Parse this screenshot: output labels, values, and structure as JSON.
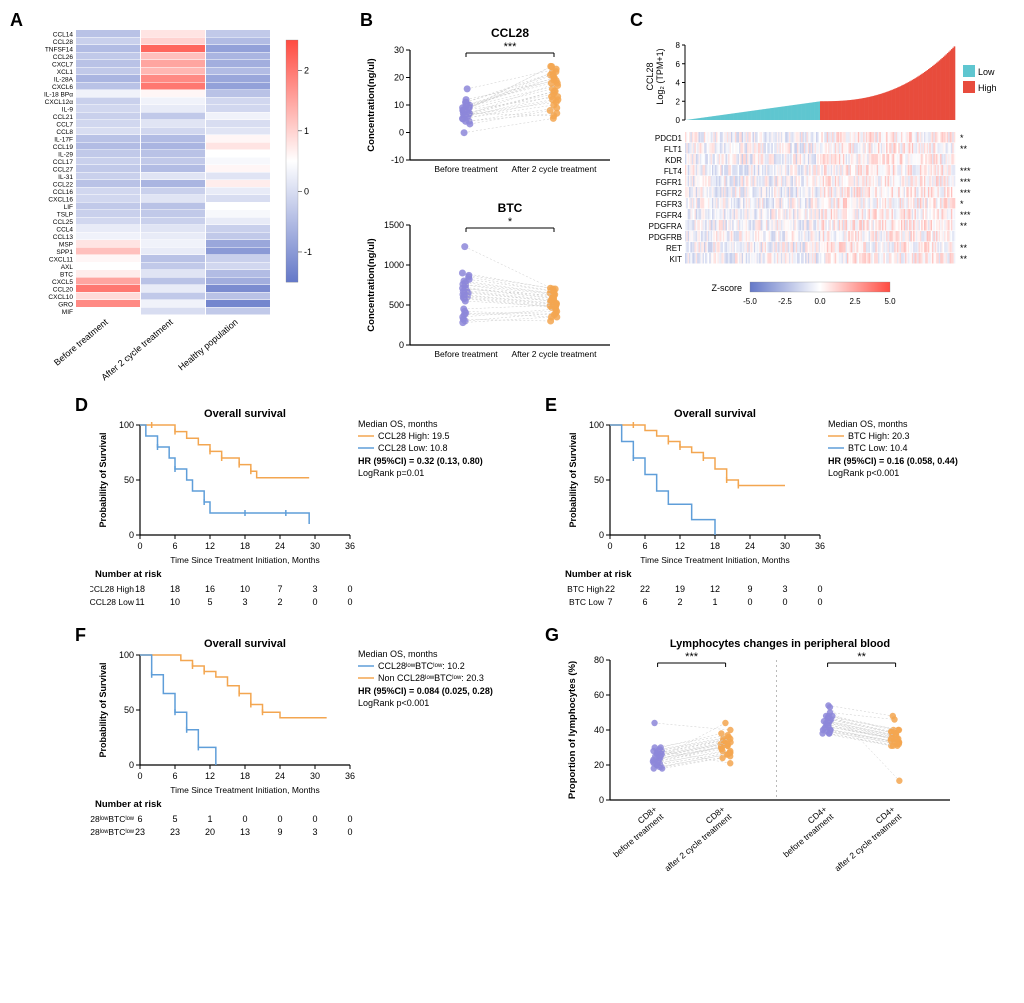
{
  "panelA": {
    "label": "A",
    "row_labels": [
      "CCL14",
      "CCL28",
      "TNFSF14",
      "CCL26",
      "CXCL7",
      "XCL1",
      "IL-28A",
      "CXCL6",
      "IL-18 BPα",
      "CXCL12α",
      "IL-9",
      "CCL21",
      "CCL7",
      "CCL8",
      "IL-17F",
      "CCL19",
      "IL-29",
      "CCL17",
      "CCL27",
      "IL-31",
      "CCL22",
      "CCL16",
      "CXCL16",
      "LIF",
      "TSLP",
      "CCL25",
      "CCL4",
      "CCL13",
      "MSP",
      "SPP1",
      "CXCL11",
      "AXL",
      "BTC",
      "CXCL5",
      "CCL20",
      "CXCL10",
      "GRO",
      "MIF"
    ],
    "col_labels": [
      "Before treatment",
      "After 2 cycle treatment",
      "Healthy population"
    ],
    "scale_ticks": [
      "2",
      "1",
      "0",
      "-1"
    ],
    "cells": [
      [
        -0.4,
        0.8,
        -0.3
      ],
      [
        -0.2,
        1.0,
        -0.5
      ],
      [
        -0.5,
        2.2,
        -0.9
      ],
      [
        -0.3,
        1.2,
        -0.6
      ],
      [
        -0.4,
        1.5,
        -0.7
      ],
      [
        -0.3,
        1.3,
        -0.5
      ],
      [
        -0.6,
        1.8,
        -0.8
      ],
      [
        -0.4,
        2.0,
        -0.9
      ],
      [
        0.3,
        0.6,
        -0.4
      ],
      [
        -0.2,
        0.3,
        -0.1
      ],
      [
        -0.1,
        0.2,
        -0.1
      ],
      [
        -0.2,
        -0.3,
        0.3
      ],
      [
        -0.1,
        0.1,
        0.0
      ],
      [
        0.0,
        -0.1,
        0.1
      ],
      [
        -0.4,
        -0.5,
        0.6
      ],
      [
        -0.5,
        -0.6,
        0.8
      ],
      [
        -0.3,
        -0.4,
        0.5
      ],
      [
        -0.2,
        -0.3,
        0.4
      ],
      [
        -0.3,
        -0.5,
        0.6
      ],
      [
        -0.2,
        0.1,
        0.1
      ],
      [
        -0.4,
        -0.6,
        0.7
      ],
      [
        -0.1,
        -0.2,
        0.2
      ],
      [
        -0.1,
        0.1,
        0.0
      ],
      [
        -0.3,
        -0.4,
        0.5
      ],
      [
        -0.2,
        -0.3,
        0.4
      ],
      [
        -0.1,
        -0.2,
        0.2
      ],
      [
        0.2,
        0.1,
        -0.2
      ],
      [
        0.3,
        0.2,
        -0.3
      ],
      [
        0.8,
        0.3,
        -0.8
      ],
      [
        1.2,
        0.2,
        -1.0
      ],
      [
        0.6,
        -0.4,
        -0.2
      ],
      [
        0.5,
        -0.3,
        -0.1
      ],
      [
        0.7,
        0.1,
        -0.5
      ],
      [
        1.5,
        -0.4,
        -0.7
      ],
      [
        2.0,
        0.2,
        -1.2
      ],
      [
        0.9,
        -0.3,
        -0.4
      ],
      [
        1.8,
        0.3,
        -1.3
      ],
      [
        0.5,
        0.0,
        -0.3
      ]
    ],
    "scale_min": -1.5,
    "scale_max": 2.5
  },
  "panelB": {
    "label": "B",
    "chart1": {
      "title": "CCL28",
      "y_label": "Concentration(ng/ul)",
      "x_labels": [
        "Before treatment",
        "After 2 cycle treatment"
      ],
      "y_ticks": [
        "-10",
        "0",
        "10",
        "20",
        "30"
      ],
      "y_min": -10,
      "y_max": 30,
      "sig": "***",
      "color_before": "#8d87d9",
      "color_after": "#f3a650",
      "pairs": [
        [
          8,
          22
        ],
        [
          10,
          20
        ],
        [
          7,
          18
        ],
        [
          9,
          24
        ],
        [
          6,
          15
        ],
        [
          12,
          19
        ],
        [
          5,
          12
        ],
        [
          8,
          16
        ],
        [
          11,
          21
        ],
        [
          7,
          14
        ],
        [
          16,
          23
        ],
        [
          9,
          17
        ],
        [
          0,
          5
        ],
        [
          3,
          8
        ],
        [
          6,
          11
        ],
        [
          4,
          9
        ],
        [
          8,
          13
        ],
        [
          10,
          19
        ],
        [
          7,
          6
        ],
        [
          5,
          10
        ],
        [
          9,
          20
        ],
        [
          11,
          22
        ],
        [
          6,
          13
        ],
        [
          8,
          24
        ],
        [
          4,
          7
        ],
        [
          7,
          15
        ],
        [
          10,
          18
        ],
        [
          9,
          21
        ],
        [
          6,
          12
        ]
      ]
    },
    "chart2": {
      "title": "BTC",
      "y_label": "Concentration(ng/ul)",
      "x_labels": [
        "Before treatment",
        "After 2 cycle treatment"
      ],
      "y_ticks": [
        "0",
        "500",
        "1000",
        "1500"
      ],
      "y_min": 0,
      "y_max": 1500,
      "sig": "*",
      "color_before": "#8d87d9",
      "color_after": "#f3a650",
      "pairs": [
        [
          800,
          650
        ],
        [
          750,
          600
        ],
        [
          900,
          700
        ],
        [
          650,
          550
        ],
        [
          1230,
          700
        ],
        [
          700,
          620
        ],
        [
          600,
          500
        ],
        [
          550,
          480
        ],
        [
          850,
          680
        ],
        [
          780,
          640
        ],
        [
          720,
          590
        ],
        [
          680,
          560
        ],
        [
          630,
          520
        ],
        [
          590,
          490
        ],
        [
          870,
          710
        ],
        [
          820,
          670
        ],
        [
          760,
          630
        ],
        [
          710,
          580
        ],
        [
          670,
          550
        ],
        [
          620,
          510
        ],
        [
          580,
          470
        ],
        [
          300,
          400
        ],
        [
          350,
          450
        ],
        [
          400,
          350
        ],
        [
          450,
          500
        ],
        [
          380,
          420
        ],
        [
          420,
          380
        ],
        [
          320,
          300
        ],
        [
          280,
          350
        ]
      ]
    }
  },
  "panelC": {
    "label": "C",
    "y_label": "CCL28\nLog₂ (TPM+1)",
    "y_ticks": [
      "0",
      "2",
      "4",
      "6",
      "8"
    ],
    "legend": {
      "low_label": "Low",
      "high_label": "High",
      "low_color": "#5fc6d0",
      "high_color": "#e84c3d"
    },
    "gene_rows": [
      "PDCD1",
      "FLT1",
      "KDR",
      "FLT4",
      "FGFR1",
      "FGFR2",
      "FGFR3",
      "FGFR4",
      "PDGFRA",
      "PDGFRB",
      "RET",
      "KIT"
    ],
    "sig_marks": [
      "*",
      "**",
      "",
      "***",
      "***",
      "***",
      "*",
      "***",
      "**",
      "",
      "**",
      "**"
    ],
    "zscore_label": "Z-score",
    "zscore_ticks": [
      "-5.0",
      "-2.5",
      "0.0",
      "2.5",
      "5.0"
    ]
  },
  "survival_common": {
    "x_label": "Time Since Treatment Initiation, Months",
    "y_label": "Probability of Survival",
    "x_ticks": [
      "0",
      "6",
      "12",
      "18",
      "24",
      "30",
      "36"
    ],
    "y_ticks": [
      "0",
      "50",
      "100"
    ],
    "risk_label": "Number at risk",
    "title": "Overall survival",
    "color_high": "#f3a650",
    "color_low": "#5f9ed9"
  },
  "panelD": {
    "label": "D",
    "legend_title": "Median OS, months",
    "high_label": "CCL28 High: 19.5",
    "low_label": "CCL28 Low: 10.8",
    "hr": "HR (95%CI) = 0.32 (0.13, 0.80)",
    "p": "LogRank p=0.01",
    "risk_high_label": "CCL28 High",
    "risk_low_label": "CCL28 Low",
    "risk_high": [
      "18",
      "18",
      "16",
      "10",
      "7",
      "3",
      "0"
    ],
    "risk_low": [
      "11",
      "10",
      "5",
      "3",
      "2",
      "0",
      "0"
    ],
    "curve_high": [
      [
        0,
        100
      ],
      [
        2,
        100
      ],
      [
        3,
        100
      ],
      [
        6,
        94
      ],
      [
        8,
        88
      ],
      [
        10,
        82
      ],
      [
        12,
        76
      ],
      [
        14,
        70
      ],
      [
        17,
        64
      ],
      [
        19,
        58
      ],
      [
        20,
        52
      ],
      [
        22,
        52
      ],
      [
        26,
        52
      ],
      [
        29,
        52
      ]
    ],
    "curve_low": [
      [
        0,
        100
      ],
      [
        1,
        90
      ],
      [
        3,
        80
      ],
      [
        5,
        70
      ],
      [
        6,
        60
      ],
      [
        8,
        50
      ],
      [
        9,
        40
      ],
      [
        11,
        30
      ],
      [
        12,
        20
      ],
      [
        18,
        20
      ],
      [
        25,
        20
      ],
      [
        29,
        10
      ]
    ]
  },
  "panelE": {
    "label": "E",
    "legend_title": "Median OS, months",
    "high_label": "BTC High: 20.3",
    "low_label": "BTC Low: 10.4",
    "hr": "HR (95%CI) = 0.16 (0.058, 0.44)",
    "p": "LogRank p<0.001",
    "risk_high_label": "BTC High",
    "risk_low_label": "BTC Low",
    "risk_high": [
      "22",
      "22",
      "19",
      "12",
      "9",
      "3",
      "0"
    ],
    "risk_low": [
      "7",
      "6",
      "2",
      "1",
      "0",
      "0",
      "0"
    ],
    "curve_high": [
      [
        0,
        100
      ],
      [
        4,
        100
      ],
      [
        6,
        95
      ],
      [
        8,
        90
      ],
      [
        10,
        85
      ],
      [
        12,
        80
      ],
      [
        14,
        75
      ],
      [
        16,
        70
      ],
      [
        18,
        60
      ],
      [
        20,
        50
      ],
      [
        22,
        45
      ],
      [
        26,
        45
      ],
      [
        30,
        45
      ]
    ],
    "curve_low": [
      [
        0,
        100
      ],
      [
        2,
        85
      ],
      [
        4,
        70
      ],
      [
        6,
        55
      ],
      [
        8,
        40
      ],
      [
        10,
        28
      ],
      [
        12,
        28
      ],
      [
        14,
        14
      ],
      [
        17,
        14
      ],
      [
        18,
        0
      ]
    ]
  },
  "panelF": {
    "label": "F",
    "legend_title": "Median OS, months",
    "low_label": "CCL28ˡᵒʷBTCˡᵒʷ: 10.2",
    "high_label": "Non CCL28ˡᵒʷBTCˡᵒʷ: 20.3",
    "hr": "HR (95%CI) = 0.084 (0.025, 0.28)",
    "p": "LogRank p<0.001",
    "risk_high_label": "Non CCL28ˡᵒʷBTCˡᵒʷ",
    "risk_low_label": "CCL28ˡᵒʷBTCˡᵒʷ",
    "risk_high": [
      "23",
      "23",
      "20",
      "13",
      "9",
      "3",
      "0"
    ],
    "risk_low": [
      "6",
      "5",
      "1",
      "0",
      "0",
      "0",
      "0"
    ],
    "curve_high": [
      [
        0,
        100
      ],
      [
        5,
        100
      ],
      [
        7,
        95
      ],
      [
        9,
        90
      ],
      [
        11,
        85
      ],
      [
        13,
        80
      ],
      [
        15,
        72
      ],
      [
        17,
        65
      ],
      [
        19,
        55
      ],
      [
        21,
        48
      ],
      [
        24,
        43
      ],
      [
        28,
        43
      ],
      [
        32,
        43
      ]
    ],
    "curve_low": [
      [
        0,
        100
      ],
      [
        2,
        82
      ],
      [
        4,
        65
      ],
      [
        6,
        48
      ],
      [
        8,
        32
      ],
      [
        10,
        16
      ],
      [
        12,
        16
      ],
      [
        13,
        0
      ]
    ]
  },
  "panelG": {
    "label": "G",
    "title": "Lymphocytes changes in peripheral blood",
    "y_label": "Proportion of lymphocytes (%)",
    "y_ticks": [
      "0",
      "20",
      "40",
      "60",
      "80"
    ],
    "y_min": 0,
    "y_max": 80,
    "x_labels": [
      "CD8+\nbefore treatment",
      "CD8+\nafter 2 cycle treatment",
      "CD4+\nbefore treatment",
      "CD4+\nafter 2 cycle treatment"
    ],
    "sig1": "***",
    "sig2": "**",
    "color_before": "#8d87d9",
    "color_after": "#f3a650",
    "cd8_pairs": [
      [
        25,
        32
      ],
      [
        22,
        30
      ],
      [
        28,
        35
      ],
      [
        20,
        27
      ],
      [
        30,
        38
      ],
      [
        18,
        25
      ],
      [
        26,
        33
      ],
      [
        24,
        31
      ],
      [
        44,
        40
      ],
      [
        21,
        28
      ],
      [
        27,
        34
      ],
      [
        23,
        30
      ],
      [
        19,
        26
      ],
      [
        25,
        32
      ],
      [
        22,
        44
      ],
      [
        28,
        21
      ],
      [
        20,
        27
      ],
      [
        30,
        37
      ],
      [
        18,
        24
      ],
      [
        26,
        33
      ],
      [
        24,
        31
      ],
      [
        29,
        36
      ],
      [
        21,
        28
      ],
      [
        27,
        34
      ],
      [
        23,
        30
      ],
      [
        19,
        26
      ],
      [
        25,
        32
      ],
      [
        22,
        29
      ],
      [
        28,
        35
      ]
    ],
    "cd4_pairs": [
      [
        42,
        35
      ],
      [
        45,
        37
      ],
      [
        40,
        33
      ],
      [
        48,
        40
      ],
      [
        38,
        31
      ],
      [
        44,
        36
      ],
      [
        54,
        48
      ],
      [
        46,
        38
      ],
      [
        39,
        32
      ],
      [
        43,
        35
      ],
      [
        47,
        39
      ],
      [
        40,
        33
      ],
      [
        50,
        46
      ],
      [
        53,
        11
      ],
      [
        45,
        37
      ],
      [
        42,
        35
      ],
      [
        48,
        40
      ],
      [
        38,
        31
      ],
      [
        44,
        36
      ],
      [
        41,
        34
      ],
      [
        46,
        38
      ],
      [
        39,
        32
      ],
      [
        43,
        35
      ],
      [
        47,
        39
      ],
      [
        40,
        33
      ],
      [
        45,
        37
      ],
      [
        42,
        35
      ],
      [
        48,
        40
      ],
      [
        38,
        31
      ]
    ]
  }
}
